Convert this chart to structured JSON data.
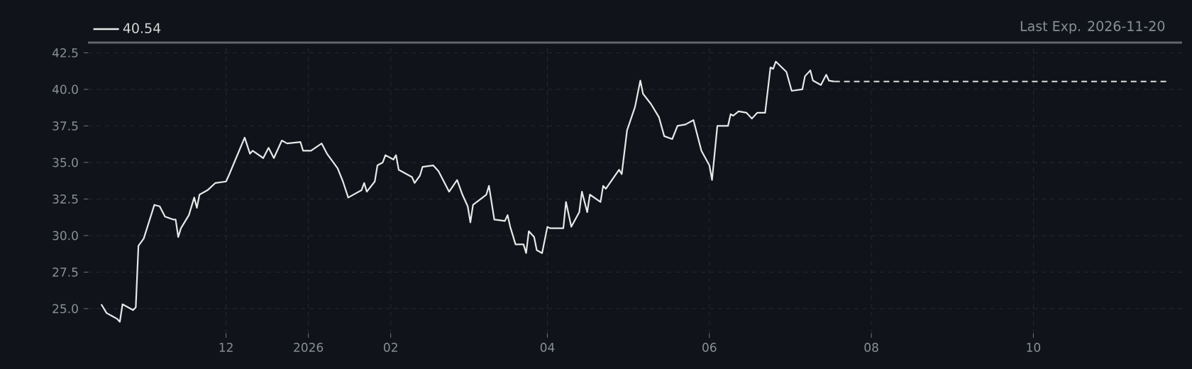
{
  "chart_data": {
    "type": "line",
    "annotations": [
      "Last Exp. 2026-11-20"
    ],
    "series": [
      {
        "name": "40.54",
        "color": "#e8e8e8",
        "line_style": "solid",
        "x": [
          "2025-10-15",
          "2025-10-17",
          "2025-10-19",
          "2025-10-21",
          "2025-10-22",
          "2025-10-23",
          "2025-10-27",
          "2025-10-28",
          "2025-10-29",
          "2025-10-31",
          "2025-11-04",
          "2025-11-06",
          "2025-11-08",
          "2025-11-11",
          "2025-11-12",
          "2025-11-13",
          "2025-11-14",
          "2025-11-17",
          "2025-11-19",
          "2025-11-20",
          "2025-11-21",
          "2025-11-24",
          "2025-11-27",
          "2025-12-01",
          "2025-12-02",
          "2025-12-08",
          "2025-12-10",
          "2025-12-11",
          "2025-12-15",
          "2025-12-17",
          "2025-12-19",
          "2025-12-22",
          "2025-12-24",
          "2025-12-29",
          "2025-12-30",
          "2026-01-02",
          "2026-01-06",
          "2026-01-08",
          "2026-01-12",
          "2026-01-14",
          "2026-01-16",
          "2026-01-21",
          "2026-01-22",
          "2026-01-23",
          "2026-01-26",
          "2026-01-27",
          "2026-01-29",
          "2026-01-30",
          "2026-02-02",
          "2026-02-03",
          "2026-02-04",
          "2026-02-09",
          "2026-02-10",
          "2026-02-12",
          "2026-02-13",
          "2026-02-17",
          "2026-02-19",
          "2026-02-23",
          "2026-02-26",
          "2026-02-28",
          "2026-03-02",
          "2026-03-03",
          "2026-03-04",
          "2026-03-09",
          "2026-03-10",
          "2026-03-12",
          "2026-03-16",
          "2026-03-17",
          "2026-03-18",
          "2026-03-20",
          "2026-03-23",
          "2026-03-24",
          "2026-03-25",
          "2026-03-27",
          "2026-03-28",
          "2026-03-30",
          "2026-04-01",
          "2026-04-02",
          "2026-04-07",
          "2026-04-08",
          "2026-04-10",
          "2026-04-13",
          "2026-04-14",
          "2026-04-16",
          "2026-04-17",
          "2026-04-21",
          "2026-04-22",
          "2026-04-23",
          "2026-04-28",
          "2026-04-29",
          "2026-05-01",
          "2026-05-04",
          "2026-05-06",
          "2026-05-07",
          "2026-05-10",
          "2026-05-13",
          "2026-05-15",
          "2026-05-18",
          "2026-05-20",
          "2026-05-23",
          "2026-05-26",
          "2026-05-29",
          "2026-06-01",
          "2026-06-02",
          "2026-06-04",
          "2026-06-08",
          "2026-06-09",
          "2026-06-10",
          "2026-06-12",
          "2026-06-15",
          "2026-06-17",
          "2026-06-19",
          "2026-06-22",
          "2026-06-24",
          "2026-06-25",
          "2026-06-26",
          "2026-06-30",
          "2026-07-02",
          "2026-07-06",
          "2026-07-07",
          "2026-07-09",
          "2026-07-10",
          "2026-07-13",
          "2026-07-15",
          "2026-07-16",
          "2026-07-18"
        ],
        "values": [
          25.3,
          24.7,
          24.5,
          24.3,
          24.1,
          25.3,
          24.9,
          25.1,
          29.3,
          29.8,
          32.1,
          32.0,
          31.3,
          31.1,
          31.1,
          29.9,
          30.5,
          31.4,
          32.6,
          31.9,
          32.8,
          33.1,
          33.6,
          33.7,
          34.1,
          36.7,
          35.6,
          35.8,
          35.3,
          36.0,
          35.3,
          36.5,
          36.3,
          36.4,
          35.8,
          35.8,
          36.3,
          35.6,
          34.6,
          33.7,
          32.6,
          33.1,
          33.6,
          33.0,
          33.7,
          34.8,
          35.0,
          35.5,
          35.2,
          35.5,
          34.5,
          34.0,
          33.6,
          34.1,
          34.7,
          34.8,
          34.4,
          33.0,
          33.8,
          32.8,
          32.0,
          30.9,
          32.1,
          32.8,
          33.4,
          31.1,
          31.0,
          31.4,
          30.6,
          29.4,
          29.4,
          28.8,
          30.3,
          29.9,
          29.0,
          28.8,
          30.6,
          30.5,
          30.5,
          32.3,
          30.6,
          31.6,
          33.0,
          31.6,
          32.8,
          32.3,
          33.4,
          33.2,
          34.5,
          34.2,
          37.2,
          38.8,
          40.6,
          39.7,
          39.0,
          38.1,
          36.8,
          36.6,
          37.5,
          37.6,
          37.9,
          35.8,
          34.8,
          33.8,
          37.5,
          37.5,
          38.3,
          38.2,
          38.5,
          38.4,
          38.0,
          38.4,
          38.4,
          41.5,
          41.4,
          41.9,
          41.2,
          39.9,
          40.0,
          40.9,
          41.3,
          40.6,
          40.3,
          41.0,
          40.6,
          40.54
        ]
      },
      {
        "color": "#c8c8c8",
        "line_style": "dashed",
        "x": [
          "2026-07-18",
          "2026-11-20"
        ],
        "values": [
          40.54,
          40.54
        ]
      }
    ],
    "xlim": [
      "2025-10-10",
      "2026-11-26"
    ],
    "xticks": [
      {
        "value": "2025-12-01",
        "label": "12"
      },
      {
        "value": "2026-01-01",
        "label": "2026"
      },
      {
        "value": "2026-02-01",
        "label": "02"
      },
      {
        "value": "2026-04-01",
        "label": "04"
      },
      {
        "value": "2026-06-01",
        "label": "06"
      },
      {
        "value": "2026-08-01",
        "label": "08"
      },
      {
        "value": "2026-10-01",
        "label": "10"
      }
    ],
    "ylim": [
      23.3,
      43.2
    ],
    "yticks": [
      {
        "value": 25,
        "label": "25.0"
      },
      {
        "value": 27.5,
        "label": "27.5"
      },
      {
        "value": 30,
        "label": "30.0"
      },
      {
        "value": 32.5,
        "label": "32.5"
      },
      {
        "value": 35,
        "label": "35.0"
      },
      {
        "value": 37.5,
        "label": "37.5"
      },
      {
        "value": 40,
        "label": "40.0"
      },
      {
        "value": 42.5,
        "label": "42.5"
      }
    ],
    "grid": true,
    "legend": "top left",
    "marker": "none"
  }
}
